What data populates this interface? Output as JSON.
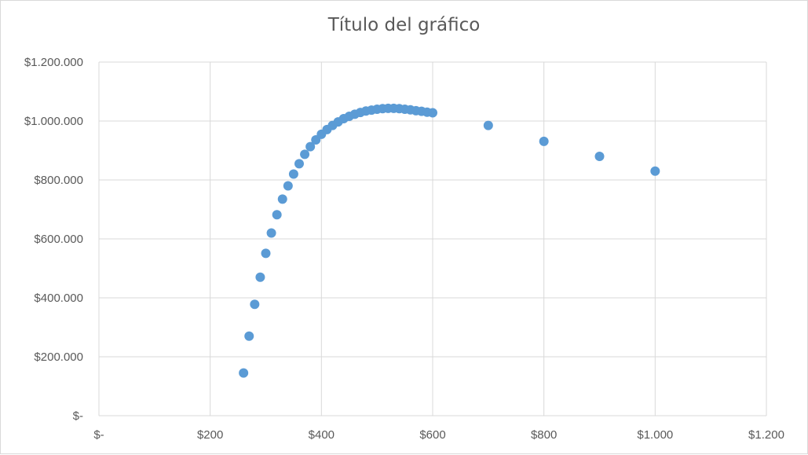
{
  "chart_data": {
    "type": "scatter",
    "title": "Título del gráfico",
    "xlabel": "",
    "ylabel": "",
    "xlim": [
      0,
      1200
    ],
    "ylim": [
      0,
      1200000
    ],
    "x_ticks": [
      0,
      200,
      400,
      600,
      800,
      1000,
      1200
    ],
    "x_tick_labels": [
      "$-",
      "$200",
      "$400",
      "$600",
      "$800",
      "$1.000",
      "$1.200"
    ],
    "y_ticks": [
      0,
      200000,
      400000,
      600000,
      800000,
      1000000,
      1200000
    ],
    "y_tick_labels": [
      "$-",
      "$200.000",
      "$400.000",
      "$600.000",
      "$800.000",
      "$1.000.000",
      "$1.200.000"
    ],
    "grid": true,
    "marker_color": "#5b9bd5",
    "grid_color": "#d9d9d9",
    "series": [
      {
        "points": [
          [
            260,
            145000
          ],
          [
            270,
            270000
          ],
          [
            280,
            378000
          ],
          [
            290,
            470000
          ],
          [
            300,
            551000
          ],
          [
            310,
            620000
          ],
          [
            320,
            682000
          ],
          [
            330,
            735000
          ],
          [
            340,
            780000
          ],
          [
            350,
            820000
          ],
          [
            360,
            855000
          ],
          [
            370,
            887000
          ],
          [
            380,
            913000
          ],
          [
            390,
            936000
          ],
          [
            400,
            955000
          ],
          [
            410,
            971000
          ],
          [
            420,
            985000
          ],
          [
            430,
            997000
          ],
          [
            440,
            1008000
          ],
          [
            450,
            1016000
          ],
          [
            460,
            1023000
          ],
          [
            470,
            1029000
          ],
          [
            480,
            1034000
          ],
          [
            490,
            1037000
          ],
          [
            500,
            1040000
          ],
          [
            510,
            1042000
          ],
          [
            520,
            1043000
          ],
          [
            530,
            1043000
          ],
          [
            540,
            1042000
          ],
          [
            550,
            1040000
          ],
          [
            560,
            1038000
          ],
          [
            570,
            1035000
          ],
          [
            580,
            1033000
          ],
          [
            590,
            1030000
          ],
          [
            600,
            1028000
          ],
          [
            700,
            985000
          ],
          [
            800,
            931000
          ],
          [
            900,
            880000
          ],
          [
            1000,
            830000
          ]
        ]
      }
    ]
  }
}
